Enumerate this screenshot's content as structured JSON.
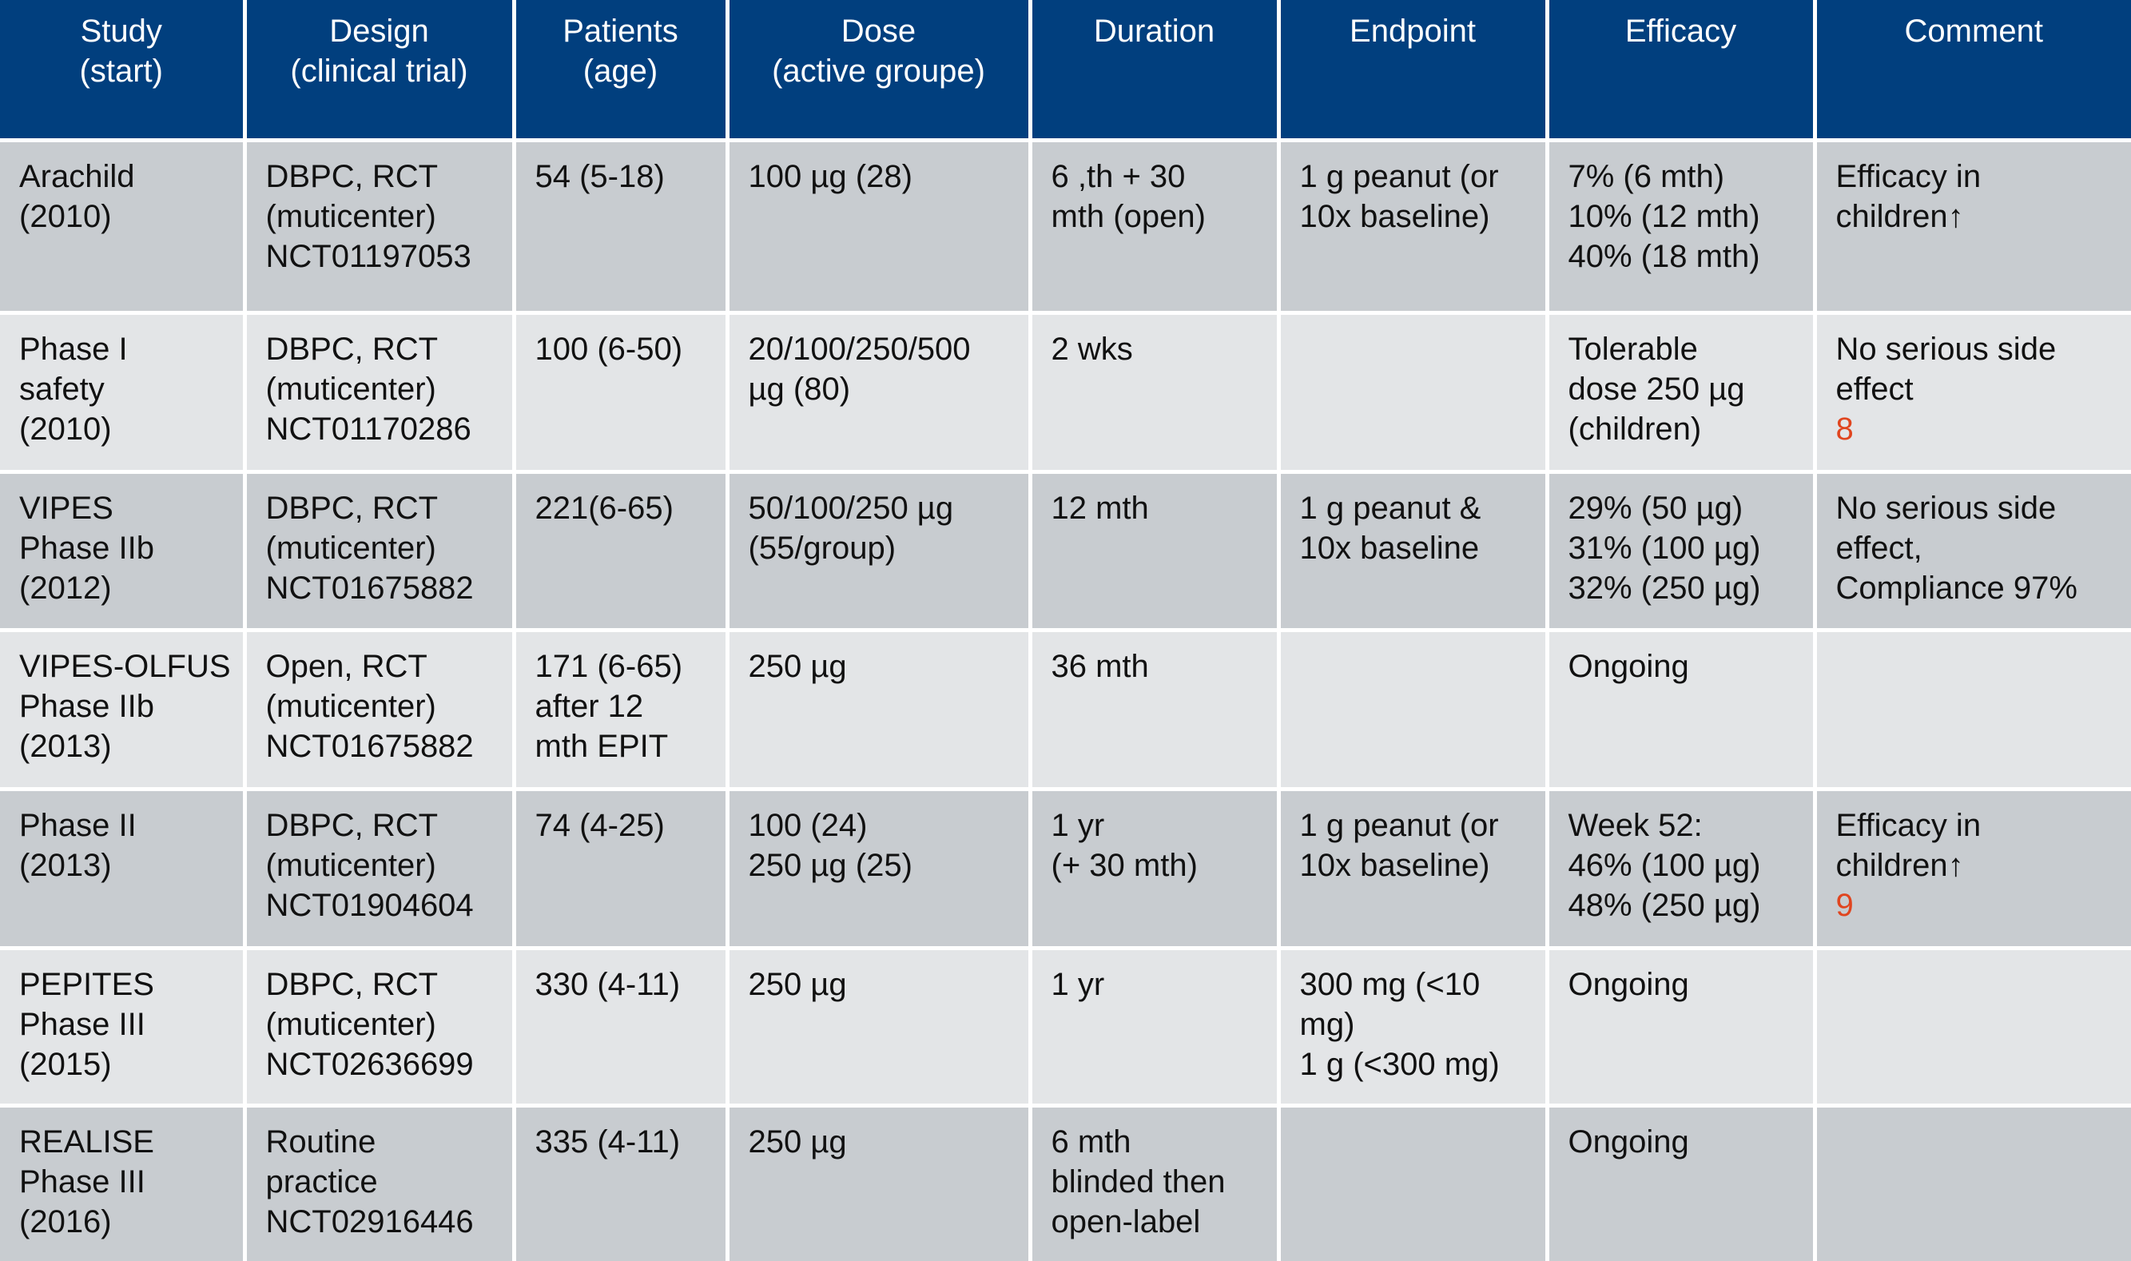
{
  "header": {
    "columns": [
      {
        "lines": [
          "Study",
          "(start)"
        ]
      },
      {
        "lines": [
          "Design",
          "(clinical trial)"
        ]
      },
      {
        "lines": [
          "Patients",
          "(age)"
        ]
      },
      {
        "lines": [
          "Dose",
          "(active groupe)"
        ]
      },
      {
        "lines": [
          "Duration"
        ]
      },
      {
        "lines": [
          "Endpoint"
        ]
      },
      {
        "lines": [
          "Efficacy"
        ]
      },
      {
        "lines": [
          "Comment"
        ]
      }
    ]
  },
  "rows": [
    {
      "cells": [
        {
          "lines": [
            "Arachild",
            "(2010)"
          ]
        },
        {
          "lines": [
            "DBPC, RCT",
            "(muticenter)",
            "NCT01197053"
          ]
        },
        {
          "lines": [
            "54 (5-18)"
          ]
        },
        {
          "lines": [
            "100 µg (28)"
          ]
        },
        {
          "lines": [
            "6 ,th + 30",
            "mth (open)"
          ]
        },
        {
          "lines": [
            "1 g peanut (or",
            "10x baseline)"
          ]
        },
        {
          "lines": [
            "7% (6 mth)",
            "10% (12 mth)",
            "40% (18 mth)"
          ]
        },
        {
          "lines": [
            "Efficacy in",
            "children↑"
          ]
        }
      ]
    },
    {
      "cells": [
        {
          "lines": [
            "Phase I",
            "safety",
            "(2010)"
          ]
        },
        {
          "lines": [
            "DBPC, RCT",
            "(muticenter)",
            "NCT01170286"
          ]
        },
        {
          "lines": [
            "100 (6-50)"
          ]
        },
        {
          "lines": [
            "20/100/250/500",
            "µg (80)"
          ]
        },
        {
          "lines": [
            "2 wks"
          ]
        },
        {
          "lines": []
        },
        {
          "lines": [
            "Tolerable",
            "dose 250 µg",
            "(children)"
          ]
        },
        {
          "lines": [
            "No serious side",
            "effect"
          ],
          "ref": "8"
        }
      ]
    },
    {
      "cells": [
        {
          "lines": [
            "VIPES",
            "Phase IIb",
            "(2012)"
          ]
        },
        {
          "lines": [
            "DBPC, RCT",
            "(muticenter)",
            "NCT01675882"
          ]
        },
        {
          "lines": [
            "221(6-65)"
          ]
        },
        {
          "lines": [
            "50/100/250 µg",
            "(55/group)"
          ]
        },
        {
          "lines": [
            "12 mth"
          ]
        },
        {
          "lines": [
            "1 g peanut &",
            "10x baseline"
          ]
        },
        {
          "lines": [
            "29% (50 µg)",
            "31% (100 µg)",
            "32% (250 µg)"
          ]
        },
        {
          "lines": [
            "No serious side",
            "effect,",
            "Compliance 97%"
          ]
        }
      ]
    },
    {
      "cells": [
        {
          "lines": [
            "VIPES-OLFUS",
            "Phase IIb",
            "(2013)"
          ]
        },
        {
          "lines": [
            "Open, RCT",
            "(muticenter)",
            "NCT01675882"
          ]
        },
        {
          "lines": [
            "171 (6-65)",
            "after 12",
            "mth EPIT"
          ]
        },
        {
          "lines": [
            "250 µg"
          ]
        },
        {
          "lines": [
            "36 mth"
          ]
        },
        {
          "lines": []
        },
        {
          "lines": [
            "Ongoing"
          ]
        },
        {
          "lines": []
        }
      ]
    },
    {
      "cells": [
        {
          "lines": [
            "Phase II",
            "(2013)"
          ]
        },
        {
          "lines": [
            "DBPC, RCT",
            "(muticenter)",
            "NCT01904604"
          ]
        },
        {
          "lines": [
            "74 (4-25)"
          ]
        },
        {
          "lines": [
            "100 (24)",
            "250 µg (25)"
          ]
        },
        {
          "lines": [
            "1 yr",
            "(+ 30 mth)"
          ]
        },
        {
          "lines": [
            "1 g peanut (or",
            "10x baseline)"
          ]
        },
        {
          "lines": [
            "Week 52:",
            "46% (100 µg)",
            "48% (250 µg)"
          ]
        },
        {
          "lines": [
            "Efficacy in",
            "children↑"
          ],
          "ref": "9"
        }
      ]
    },
    {
      "cells": [
        {
          "lines": [
            "PEPITES",
            "Phase III",
            "(2015)"
          ]
        },
        {
          "lines": [
            "DBPC, RCT",
            "(muticenter)",
            "NCT02636699"
          ]
        },
        {
          "lines": [
            "330 (4-11)"
          ]
        },
        {
          "lines": [
            "250 µg"
          ]
        },
        {
          "lines": [
            "1 yr"
          ]
        },
        {
          "lines": [
            "300 mg (<10",
            "mg)",
            "1 g (<300 mg)"
          ]
        },
        {
          "lines": [
            "Ongoing"
          ]
        },
        {
          "lines": []
        }
      ]
    },
    {
      "cells": [
        {
          "lines": [
            "REALISE",
            "Phase III",
            "(2016)"
          ]
        },
        {
          "lines": [
            "Routine",
            "practice",
            "NCT02916446"
          ]
        },
        {
          "lines": [
            "335 (4-11)"
          ]
        },
        {
          "lines": [
            "250 µg"
          ]
        },
        {
          "lines": [
            "6 mth",
            "blinded then",
            "open-label"
          ]
        },
        {
          "lines": []
        },
        {
          "lines": [
            "Ongoing"
          ]
        },
        {
          "lines": []
        }
      ]
    }
  ]
}
